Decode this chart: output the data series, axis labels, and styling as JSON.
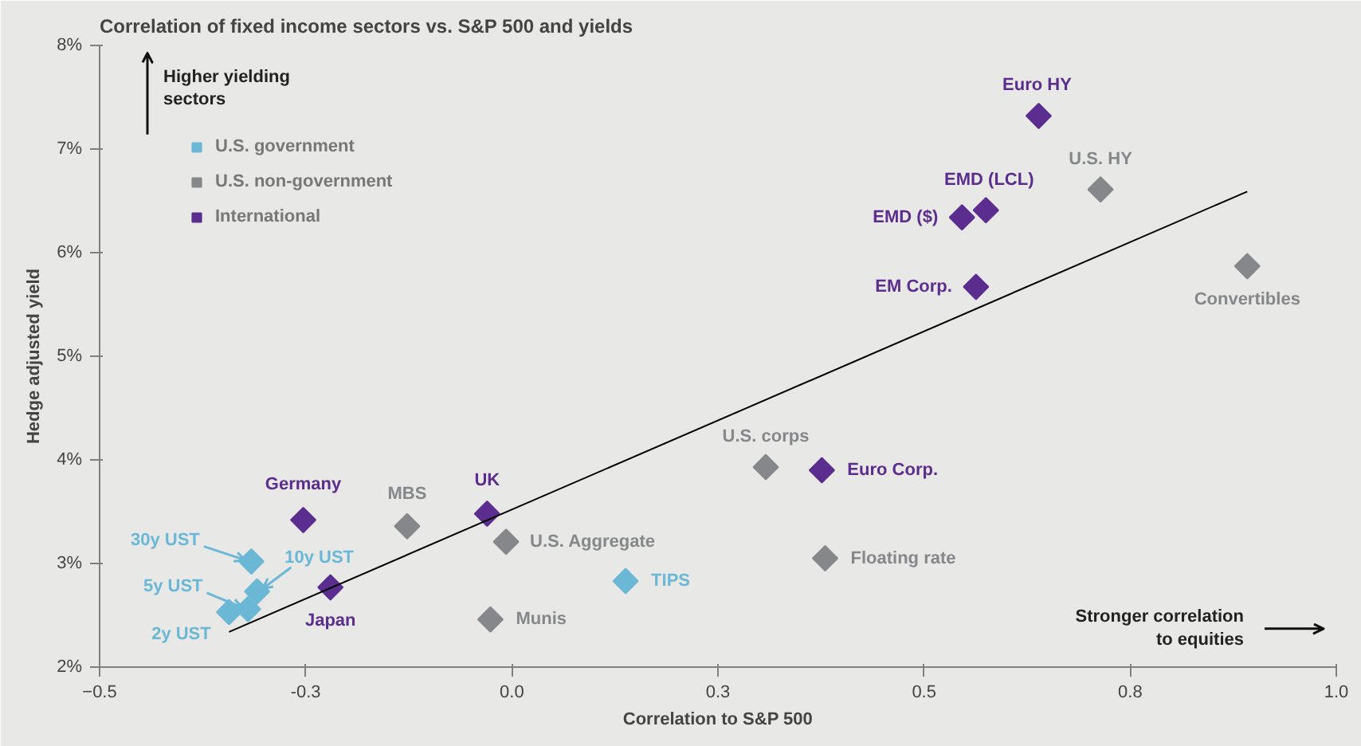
{
  "chart_data": {
    "type": "scatter",
    "title": "Correlation of fixed income sectors vs. S&P 500 and yields",
    "xlabel": "Correlation to S&P 500",
    "ylabel": "Hedge adjusted yield",
    "xlim": [
      -0.5,
      1.0
    ],
    "ylim": [
      2,
      8
    ],
    "xticks": [
      -0.5,
      {
        "value": -0.25,
        "label": "-0.3"
      },
      {
        "value": 0,
        "label": "0.0"
      },
      {
        "value": 0.25,
        "label": "0.3"
      },
      0.5,
      {
        "value": 0.75,
        "label": "0.8"
      },
      {
        "value": 1,
        "label": "1.0"
      }
    ],
    "yticks": [
      {
        "value": 2,
        "label": "2%"
      },
      {
        "value": 3,
        "label": "3%"
      },
      {
        "value": 4,
        "label": "4%"
      },
      {
        "value": 5,
        "label": "5%"
      },
      {
        "value": 6,
        "label": "6%"
      },
      {
        "value": 7,
        "label": "7%"
      },
      {
        "value": 8,
        "label": "8%"
      }
    ],
    "marker": "diamond",
    "legend": "top left",
    "series": [
      {
        "name": "U.S. government",
        "color": "#6bb8d6",
        "x": [
          -0.343,
          -0.32,
          -0.309,
          -0.316,
          0.138
        ],
        "values": [
          2.53,
          2.56,
          2.73,
          3.02,
          2.83
        ]
      },
      {
        "name": "U.S. non-government",
        "color": "#85878a",
        "x": [
          -0.127,
          -0.007,
          -0.026,
          0.308,
          0.38,
          0.714,
          0.892
        ],
        "values": [
          3.36,
          3.21,
          2.46,
          3.93,
          3.05,
          6.61,
          5.87
        ]
      },
      {
        "name": "International",
        "color": "#5b2d8e",
        "x": [
          -0.253,
          -0.22,
          -0.03,
          0.376,
          0.563,
          0.546,
          0.575,
          0.639
        ],
        "values": [
          3.42,
          2.77,
          3.48,
          3.9,
          5.67,
          6.34,
          6.41,
          7.32
        ]
      },
      {
        "type": "line",
        "color": "#000000",
        "marker": "none",
        "x": [
          -0.343,
          0.892
        ],
        "values": [
          2.34,
          6.59
        ]
      }
    ],
    "annotations": [
      {
        "text": "2y UST",
        "x": -0.343,
        "y": 2.53
      },
      {
        "text": "5y UST",
        "x": -0.32,
        "y": 2.56
      },
      {
        "text": "10y UST",
        "x": -0.309,
        "y": 2.73
      },
      {
        "text": "30y UST",
        "x": -0.316,
        "y": 3.02
      },
      {
        "text": "Germany",
        "x": -0.253,
        "y": 3.42
      },
      {
        "text": "Japan",
        "x": -0.22,
        "y": 2.77
      },
      {
        "text": "MBS",
        "x": -0.127,
        "y": 3.36
      },
      {
        "text": "UK",
        "x": -0.03,
        "y": 3.48
      },
      {
        "text": "U.S. Aggregate",
        "x": -0.007,
        "y": 3.21
      },
      {
        "text": "Munis",
        "x": -0.026,
        "y": 2.46
      },
      {
        "text": "TIPS",
        "x": 0.138,
        "y": 2.83
      },
      {
        "text": "U.S. corps",
        "x": 0.308,
        "y": 3.93
      },
      {
        "text": "Euro Corp.",
        "x": 0.376,
        "y": 3.9
      },
      {
        "text": "Floating rate",
        "x": 0.38,
        "y": 3.05
      },
      {
        "text": "EM Corp.",
        "x": 0.563,
        "y": 5.67
      },
      {
        "text": "EMD ($)",
        "x": 0.546,
        "y": 6.34
      },
      {
        "text": "EMD (LCL)",
        "x": 0.575,
        "y": 6.41
      },
      {
        "text": "Euro HY",
        "x": 0.639,
        "y": 7.32
      },
      {
        "text": "U.S. HY",
        "x": 0.714,
        "y": 6.61
      },
      {
        "text": "Convertibles",
        "x": 0.892,
        "y": 5.87
      },
      "Higher yielding\nsectors",
      "Stronger correlation\nto equities"
    ]
  }
}
